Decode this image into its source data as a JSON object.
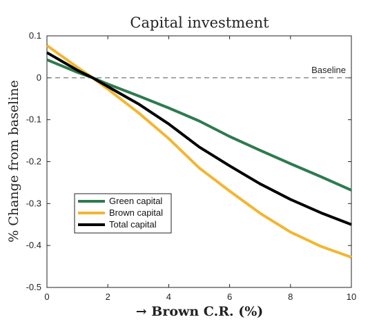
{
  "chart_data": {
    "type": "line",
    "title": "Capital investment",
    "xlabel": "→ Brown C.R. (%)",
    "ylabel": "% Change from baseline",
    "xlim": [
      0,
      10
    ],
    "ylim": [
      -0.5,
      0.1
    ],
    "xticks": [
      0,
      2,
      4,
      6,
      8,
      10
    ],
    "yticks": [
      0.1,
      0,
      -0.1,
      -0.2,
      -0.3,
      -0.4,
      -0.5
    ],
    "xtick_labels": [
      "0",
      "2",
      "4",
      "6",
      "8",
      "10"
    ],
    "ytick_labels": [
      "0.1",
      "0",
      "-0.1",
      "-0.2",
      "-0.3",
      "-0.4",
      "-0.5"
    ],
    "grid": false,
    "legend_position": "lower-left",
    "reference_line": {
      "y": 0,
      "label": "Baseline",
      "style": "dashed",
      "color": "#555555"
    },
    "series": [
      {
        "name": "Green capital",
        "color": "#2e7a4f",
        "x": [
          0,
          1,
          1.5,
          2,
          3,
          4,
          5,
          6,
          7,
          8,
          9,
          10
        ],
        "y": [
          0.043,
          0.013,
          0.0,
          -0.015,
          -0.043,
          -0.072,
          -0.103,
          -0.14,
          -0.173,
          -0.205,
          -0.236,
          -0.268
        ]
      },
      {
        "name": "Brown capital",
        "color": "#f2b632",
        "x": [
          0,
          1,
          1.5,
          2,
          3,
          4,
          5,
          6,
          7,
          8,
          9,
          10
        ],
        "y": [
          0.077,
          0.025,
          0.0,
          -0.027,
          -0.083,
          -0.145,
          -0.215,
          -0.27,
          -0.323,
          -0.368,
          -0.402,
          -0.428
        ]
      },
      {
        "name": "Total capital",
        "color": "#000000",
        "x": [
          0,
          1,
          1.5,
          2,
          3,
          4,
          5,
          6,
          7,
          8,
          9,
          10
        ],
        "y": [
          0.06,
          0.018,
          0.0,
          -0.021,
          -0.062,
          -0.11,
          -0.165,
          -0.21,
          -0.253,
          -0.29,
          -0.322,
          -0.35
        ]
      }
    ]
  }
}
